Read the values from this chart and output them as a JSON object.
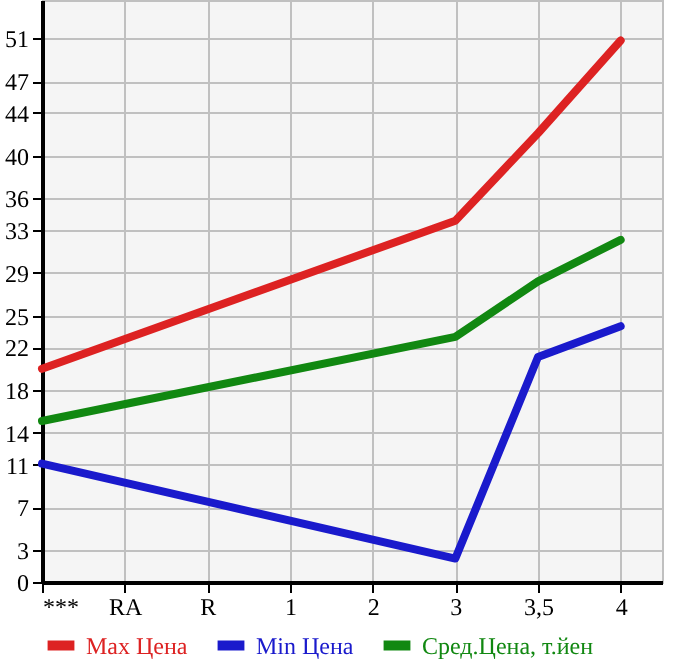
{
  "chart_data": {
    "type": "line",
    "categories": [
      "***",
      "RA",
      "R",
      "1",
      "2",
      "3",
      "3,5",
      "4"
    ],
    "series": [
      {
        "name": "Max Цена",
        "color": "#dd2222",
        "values": [
          20.0,
          null,
          null,
          null,
          null,
          33.9,
          42.1,
          50.8
        ]
      },
      {
        "name": "Min Цена",
        "color": "#1a1acc",
        "values": [
          11.1,
          null,
          null,
          null,
          null,
          2.2,
          21.1,
          24.0
        ]
      },
      {
        "name": "Сред.Цена, т.йен",
        "color": "#118811",
        "values": [
          15.1,
          null,
          null,
          null,
          null,
          23.0,
          28.2,
          32.1
        ]
      }
    ],
    "ylim": [
      0,
      54.6
    ],
    "yticks": [
      0,
      3,
      7,
      11,
      14,
      18,
      22,
      25,
      29,
      33,
      36,
      40,
      44,
      47,
      51
    ],
    "grid": true,
    "legend": "bottom",
    "marker": "none",
    "line_style": "solid"
  }
}
